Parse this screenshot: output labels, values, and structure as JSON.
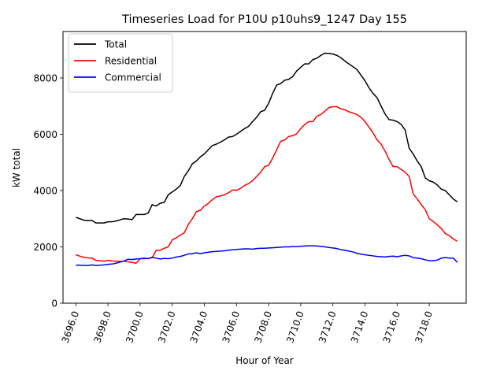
{
  "chart_data": {
    "type": "line",
    "title": "Timeseries Load for P10U p10uhs9_1247  Day 155",
    "xlabel": "Hour of Year",
    "ylabel": "kW total",
    "xlim": [
      3695.2,
      3720.3
    ],
    "ylim": [
      0,
      9650
    ],
    "x_ticks": [
      3696,
      3698,
      3700,
      3702,
      3704,
      3706,
      3708,
      3710,
      3712,
      3714,
      3716,
      3718
    ],
    "x_tick_labels": [
      "3696.0",
      "3698.0",
      "3700.0",
      "3702.0",
      "3704.0",
      "3706.0",
      "3708.0",
      "3710.0",
      "3712.0",
      "3714.0",
      "3716.0",
      "3718.0"
    ],
    "y_ticks": [
      0,
      2000,
      4000,
      6000,
      8000
    ],
    "y_tick_labels": [
      "0",
      "2000",
      "4000",
      "6000",
      "8000"
    ],
    "grid": false,
    "legend_position": "top-left",
    "x": [
      3696.0,
      3696.25,
      3696.5,
      3696.75,
      3697.0,
      3697.25,
      3697.5,
      3697.75,
      3698.0,
      3698.25,
      3698.5,
      3698.75,
      3699.0,
      3699.25,
      3699.5,
      3699.75,
      3700.0,
      3700.25,
      3700.5,
      3700.75,
      3701.0,
      3701.25,
      3701.5,
      3701.75,
      3702.0,
      3702.25,
      3702.5,
      3702.75,
      3703.0,
      3703.25,
      3703.5,
      3703.75,
      3704.0,
      3704.25,
      3704.5,
      3704.75,
      3705.0,
      3705.25,
      3705.5,
      3705.75,
      3706.0,
      3706.25,
      3706.5,
      3706.75,
      3707.0,
      3707.25,
      3707.5,
      3707.75,
      3708.0,
      3708.25,
      3708.5,
      3708.75,
      3709.0,
      3709.25,
      3709.5,
      3709.75,
      3710.0,
      3710.25,
      3710.5,
      3710.75,
      3711.0,
      3711.25,
      3711.5,
      3711.75,
      3712.0,
      3712.25,
      3712.5,
      3712.75,
      3713.0,
      3713.25,
      3713.5,
      3713.75,
      3714.0,
      3714.25,
      3714.5,
      3714.75,
      3715.0,
      3715.25,
      3715.5,
      3715.75,
      3716.0,
      3716.25,
      3716.5,
      3716.75,
      3717.0,
      3717.25,
      3717.5,
      3717.75,
      3718.0,
      3718.25,
      3718.5,
      3718.75,
      3719.0,
      3719.25,
      3719.5,
      3719.75
    ],
    "series": [
      {
        "name": "Total",
        "color": "#000000",
        "values": [
          3050,
          3000,
          2950,
          2930,
          2940,
          2850,
          2850,
          2850,
          2890,
          2890,
          2920,
          2960,
          3000,
          2990,
          2970,
          3150,
          3150,
          3150,
          3200,
          3500,
          3450,
          3550,
          3580,
          3850,
          3950,
          4050,
          4180,
          4500,
          4700,
          4950,
          5050,
          5200,
          5300,
          5450,
          5600,
          5650,
          5720,
          5800,
          5900,
          5920,
          6000,
          6100,
          6200,
          6280,
          6450,
          6600,
          6800,
          6850,
          7100,
          7450,
          7750,
          7800,
          7920,
          7950,
          8050,
          8250,
          8380,
          8500,
          8500,
          8650,
          8700,
          8800,
          8880,
          8870,
          8850,
          8800,
          8720,
          8600,
          8500,
          8400,
          8300,
          8100,
          7900,
          7650,
          7450,
          7300,
          7000,
          6720,
          6520,
          6500,
          6450,
          6350,
          6150,
          5500,
          5300,
          5050,
          4850,
          4450,
          4350,
          4300,
          4200,
          4050,
          4000,
          3850,
          3700,
          3600
        ]
      },
      {
        "name": "Residential",
        "color": "#ff0000",
        "values": [
          1720,
          1670,
          1630,
          1610,
          1600,
          1520,
          1510,
          1490,
          1520,
          1500,
          1490,
          1490,
          1490,
          1470,
          1450,
          1420,
          1580,
          1580,
          1590,
          1620,
          1880,
          1880,
          1950,
          2000,
          2250,
          2320,
          2420,
          2500,
          2800,
          3000,
          3250,
          3300,
          3450,
          3550,
          3680,
          3780,
          3810,
          3850,
          3920,
          4020,
          4010,
          4080,
          4180,
          4250,
          4350,
          4500,
          4650,
          4850,
          4900,
          5150,
          5450,
          5750,
          5800,
          5920,
          5950,
          6020,
          6200,
          6350,
          6450,
          6450,
          6640,
          6700,
          6820,
          6950,
          6980,
          6980,
          6900,
          6870,
          6800,
          6750,
          6700,
          6600,
          6450,
          6250,
          6050,
          5800,
          5650,
          5400,
          5100,
          4850,
          4850,
          4750,
          4650,
          4500,
          3880,
          3700,
          3500,
          3320,
          3000,
          2900,
          2780,
          2650,
          2470,
          2400,
          2280,
          2200
        ]
      },
      {
        "name": "Commercial",
        "color": "#0000ff",
        "values": [
          1350,
          1350,
          1340,
          1340,
          1360,
          1340,
          1350,
          1360,
          1380,
          1390,
          1420,
          1460,
          1500,
          1560,
          1550,
          1570,
          1580,
          1600,
          1580,
          1630,
          1600,
          1570,
          1590,
          1580,
          1600,
          1640,
          1660,
          1700,
          1750,
          1760,
          1790,
          1760,
          1790,
          1810,
          1830,
          1840,
          1850,
          1860,
          1880,
          1900,
          1910,
          1920,
          1930,
          1930,
          1920,
          1940,
          1950,
          1950,
          1960,
          1970,
          1980,
          1990,
          2000,
          2000,
          2010,
          2010,
          2020,
          2030,
          2040,
          2040,
          2030,
          2020,
          2000,
          1980,
          1960,
          1940,
          1900,
          1880,
          1850,
          1820,
          1770,
          1740,
          1720,
          1700,
          1680,
          1660,
          1650,
          1640,
          1660,
          1670,
          1650,
          1680,
          1700,
          1680,
          1620,
          1600,
          1580,
          1540,
          1510,
          1510,
          1530,
          1600,
          1620,
          1600,
          1600,
          1450
        ]
      }
    ]
  }
}
